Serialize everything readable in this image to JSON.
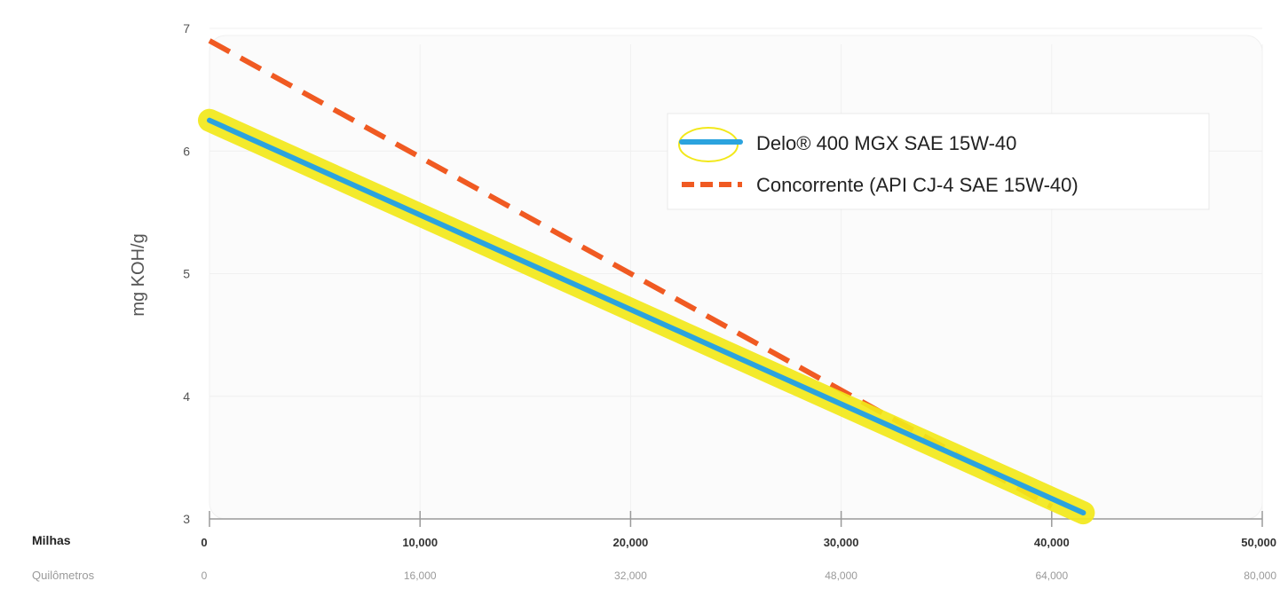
{
  "chart_data": {
    "type": "line",
    "title": "",
    "ylabel": "mg KOH/g",
    "xlabel_primary": "Milhas",
    "xlabel_secondary": "Quilômetros",
    "ylim": [
      3,
      7
    ],
    "xlim": [
      0,
      50000
    ],
    "y_ticks": [
      "3",
      "4",
      "5",
      "6",
      "7"
    ],
    "x_ticks_miles": [
      "0",
      "10,000",
      "20,000",
      "30,000",
      "40,000",
      "50,000"
    ],
    "x_ticks_km": [
      "0",
      "16,000",
      "32,000",
      "48,000",
      "64,000",
      "80,000"
    ],
    "grid": true,
    "legend_position": "top-right",
    "series": [
      {
        "name": "Delo® 400 MGX SAE 15W-40",
        "style": "solid",
        "color": "#2ba3de",
        "highlight_color": "#f2e81a",
        "x": [
          0,
          41500
        ],
        "y": [
          6.25,
          3.05
        ]
      },
      {
        "name": "Concorrente (API CJ-4 SAE 15W-40)",
        "style": "dashed",
        "color": "#f05a22",
        "x": [
          0,
          40000
        ],
        "y": [
          6.9,
          3.1
        ]
      }
    ]
  }
}
